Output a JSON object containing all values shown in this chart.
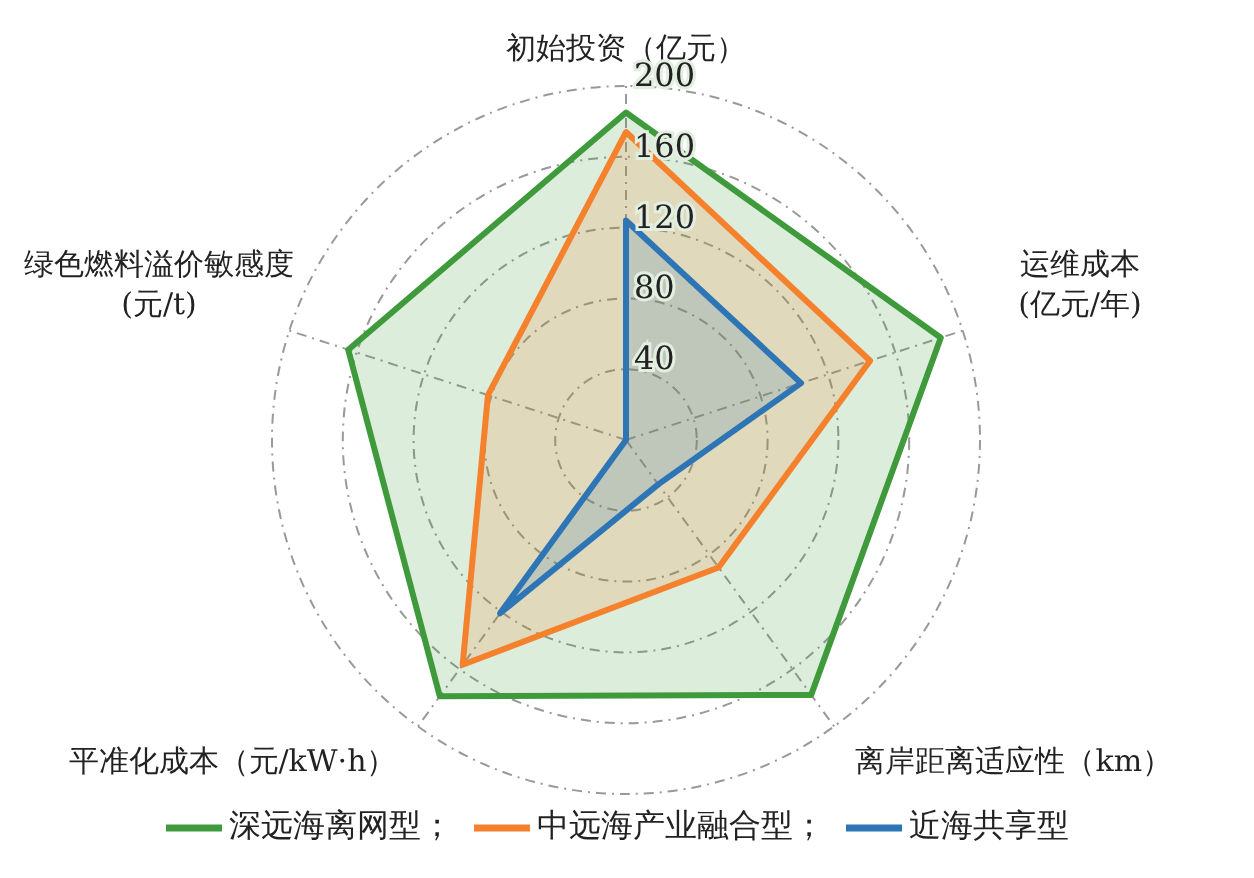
{
  "chart_data": {
    "type": "radar",
    "categories": [
      "初始投资（亿元）",
      "运维成本\n(亿元/年)",
      "离岸距离适应性（km）",
      "平准化成本（元/kW·h）",
      "绿色燃料溢价敏感度\n(元/t)"
    ],
    "series": [
      {
        "name": "深远海离网型；",
        "color": "#3f9a3c",
        "values": [
          185,
          187,
          178,
          179,
          165
        ]
      },
      {
        "name": "中远海产业融合型；",
        "color": "#f5812c",
        "values": [
          174,
          145,
          89,
          157,
          82
        ]
      },
      {
        "name": "近海共享型",
        "color": "#2e75b6",
        "values": [
          124,
          104,
          31,
          121,
          0
        ]
      }
    ],
    "ylim": [
      0,
      200
    ],
    "yticks": [
      40,
      80,
      120,
      160,
      200
    ],
    "grid": true,
    "legend": "bottom",
    "marker": "none",
    "line_style": "solid"
  }
}
